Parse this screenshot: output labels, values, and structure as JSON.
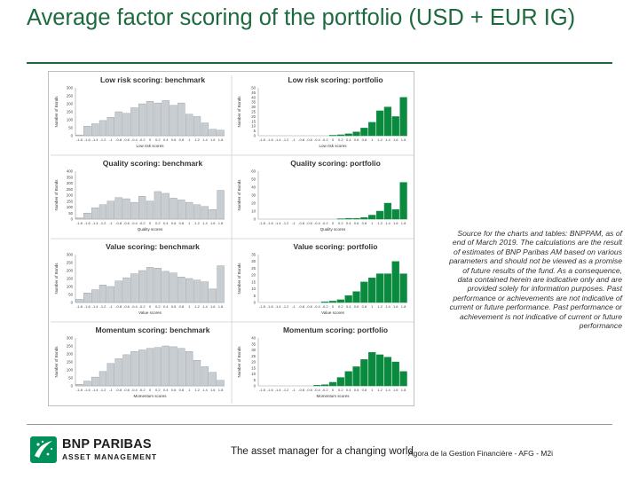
{
  "slide": {
    "title": "Average factor scoring of the portfolio (USD + EUR IG)",
    "source_note": "Source for the charts and tables: BNPPAM, as of end of March 2019. The calculations are the result of estimates of BNP Paribas AM based on various parameters and should not be viewed as a promise of future results of the fund. As a consequence, data contained herein are indicative only and are provided solely for information purposes. Past performance or achievements are not indicative of current or future performance. Past performance or achievement is not indicative of current or future performance",
    "footer_tagline": "The asset manager for a changing world",
    "footer_ref": "Agora de la Gestion Financière - AFG - M2i"
  },
  "logo": {
    "name": "BNP PARIBAS",
    "sub": "ASSET MANAGEMENT"
  },
  "colors": {
    "title": "#1e6a3f",
    "benchmark": "#c8cdd2",
    "benchmark_edge": "#8e959c",
    "portfolio": "#0a8a3e",
    "axis": "#9a9a9a"
  },
  "chart_data": [
    {
      "type": "bar",
      "title": "Low risk scoring: benchmark",
      "ylabel": "Number of Bonds",
      "xlabel": "Low risk scores",
      "ylim": [
        0,
        300
      ],
      "yticks": [
        0,
        50,
        100,
        150,
        200,
        250,
        300
      ],
      "categories": [
        "-1.8",
        "-1.6",
        "-1.4",
        "-1.2",
        "-1",
        "-0.8",
        "-0.6",
        "-0.4",
        "-0.2",
        "0",
        "0.2",
        "0.4",
        "0.6",
        "0.8",
        "1",
        "1.2",
        "1.4",
        "1.6",
        "1.8"
      ],
      "xtick_labels": [
        "-1.8",
        "-1.6",
        "-1.4",
        "-1.2",
        "-1",
        "-0.8",
        "-0.6",
        "-0.4",
        "-0.2",
        "0",
        "0.2",
        "0.4",
        "0.6",
        "0.8",
        "1",
        "1.2",
        "1.4",
        "1.6",
        "1.8"
      ],
      "series": [
        {
          "values": [
            5,
            60,
            75,
            95,
            115,
            150,
            140,
            175,
            200,
            215,
            205,
            220,
            190,
            205,
            135,
            120,
            80,
            40,
            35
          ]
        }
      ]
    },
    {
      "type": "bar",
      "title": "Low risk scoring: portfolio",
      "ylabel": "Number of Bonds",
      "xlabel": "Low risk scores",
      "ylim": [
        0,
        50
      ],
      "yticks": [
        0,
        5,
        10,
        15,
        20,
        25,
        30,
        35,
        40,
        45,
        50
      ],
      "categories": [
        "-1.8",
        "-1.6",
        "-1.4",
        "-1.2",
        "-1",
        "-0.8",
        "-0.6",
        "-0.4",
        "-0.2",
        "0",
        "0.2",
        "0.4",
        "0.6",
        "0.8",
        "1",
        "1.2",
        "1.4",
        "1.6",
        "1.8"
      ],
      "xtick_labels": [
        "-1.8",
        "-1.6",
        "-1.4",
        "-1.2",
        "-1",
        "-0.8",
        "-0.6",
        "-0.4",
        "-0.2",
        "0",
        "0.2",
        "0.4",
        "0.6",
        "0.8",
        "1",
        "1.2",
        "1.4",
        "1.6",
        "1.8"
      ],
      "series": [
        {
          "values": [
            0,
            0,
            0,
            0,
            0,
            0,
            0,
            0,
            0,
            0.5,
            1,
            2,
            4,
            8,
            14,
            26,
            30,
            20,
            40
          ]
        }
      ]
    },
    {
      "type": "bar",
      "title": "Quality scoring: benchmark",
      "ylabel": "Number of Bonds",
      "xlabel": "Quality scores",
      "ylim": [
        0,
        400
      ],
      "yticks": [
        0,
        50,
        100,
        150,
        200,
        250,
        300,
        350,
        400
      ],
      "categories": [
        "-1.8",
        "-1.6",
        "-1.4",
        "-1.2",
        "-1",
        "-0.8",
        "-0.6",
        "-0.4",
        "-0.2",
        "0",
        "0.2",
        "0.4",
        "0.6",
        "0.8",
        "1",
        "1.2",
        "1.4",
        "1.6",
        "1.8"
      ],
      "xtick_labels": [
        "-1.8",
        "-1.6",
        "-1.4",
        "-1.2",
        "-1",
        "-0.8",
        "-0.6",
        "-0.4",
        "-0.2",
        "0",
        "0.2",
        "0.4",
        "0.6",
        "0.8",
        "1",
        "1.2",
        "1.4",
        "1.6",
        "1.8"
      ],
      "series": [
        {
          "values": [
            10,
            50,
            95,
            120,
            150,
            180,
            170,
            140,
            190,
            150,
            230,
            215,
            175,
            160,
            140,
            120,
            105,
            80,
            240
          ]
        }
      ]
    },
    {
      "type": "bar",
      "title": "Quality scoring: portfolio",
      "ylabel": "Number of Bonds",
      "xlabel": "Quality scores",
      "ylim": [
        0,
        60
      ],
      "yticks": [
        0,
        10,
        20,
        30,
        40,
        50,
        60
      ],
      "categories": [
        "-1.8",
        "-1.6",
        "-1.4",
        "-1.2",
        "-1",
        "-0.8",
        "-0.6",
        "-0.4",
        "-0.2",
        "0",
        "0.2",
        "0.4",
        "0.6",
        "0.8",
        "1",
        "1.2",
        "1.4",
        "1.6",
        "1.8"
      ],
      "xtick_labels": [
        "-1.8",
        "-1.6",
        "-1.4",
        "-1.2",
        "-1",
        "-0.8",
        "-0.6",
        "-0.4",
        "-0.2",
        "0",
        "0.2",
        "0.4",
        "0.6",
        "0.8",
        "1",
        "1.2",
        "1.4",
        "1.6",
        "1.8"
      ],
      "series": [
        {
          "values": [
            0,
            0,
            0,
            0,
            0,
            0,
            0,
            0,
            0,
            0,
            0.5,
            1,
            1,
            2,
            5,
            10,
            20,
            12,
            46
          ]
        }
      ]
    },
    {
      "type": "bar",
      "title": "Value scoring: benchmark",
      "ylabel": "Number of Bonds",
      "xlabel": "Value scores",
      "ylim": [
        0,
        300
      ],
      "yticks": [
        0,
        50,
        100,
        150,
        200,
        250,
        300
      ],
      "categories": [
        "-1.8",
        "-1.6",
        "-1.4",
        "-1.2",
        "-1",
        "-0.8",
        "-0.6",
        "-0.4",
        "-0.2",
        "0",
        "0.2",
        "0.4",
        "0.6",
        "0.8",
        "1",
        "1.2",
        "1.4",
        "1.6",
        "1.8"
      ],
      "xtick_labels": [
        "-1.8",
        "-1.6",
        "-1.4",
        "-1.2",
        "-1",
        "-0.8",
        "-0.6",
        "-0.4",
        "-0.2",
        "0",
        "0.2",
        "0.4",
        "0.6",
        "0.8",
        "1",
        "1.2",
        "1.4",
        "1.6",
        "1.8"
      ],
      "series": [
        {
          "values": [
            20,
            60,
            80,
            110,
            100,
            135,
            155,
            180,
            200,
            220,
            215,
            195,
            185,
            160,
            150,
            140,
            130,
            85,
            230
          ]
        }
      ]
    },
    {
      "type": "bar",
      "title": "Value scoring: portfolio",
      "ylabel": "Number of Bonds",
      "xlabel": "Value scores",
      "ylim": [
        0,
        35
      ],
      "yticks": [
        0,
        5,
        10,
        15,
        20,
        25,
        30,
        35
      ],
      "categories": [
        "-1.8",
        "-1.6",
        "-1.4",
        "-1.2",
        "-1",
        "-0.8",
        "-0.6",
        "-0.4",
        "-0.2",
        "0",
        "0.2",
        "0.4",
        "0.6",
        "0.8",
        "1",
        "1.2",
        "1.4",
        "1.6",
        "1.8"
      ],
      "xtick_labels": [
        "-1.8",
        "-1.6",
        "-1.4",
        "-1.2",
        "-1",
        "-0.8",
        "-0.6",
        "-0.4",
        "-0.2",
        "0",
        "0.2",
        "0.4",
        "0.6",
        "0.8",
        "1",
        "1.2",
        "1.4",
        "1.6",
        "1.8"
      ],
      "series": [
        {
          "values": [
            0,
            0,
            0,
            0,
            0,
            0,
            0,
            0,
            0.5,
            1,
            2,
            5,
            8,
            15,
            18,
            21,
            21,
            30,
            21
          ]
        }
      ]
    },
    {
      "type": "bar",
      "title": "Momentum scoring: benchmark",
      "ylabel": "Number of Bonds",
      "xlabel": "Momentum scores",
      "ylim": [
        0,
        300
      ],
      "yticks": [
        0,
        50,
        100,
        150,
        200,
        250,
        300
      ],
      "categories": [
        "-1.8",
        "-1.6",
        "-1.4",
        "-1.2",
        "-1",
        "-0.8",
        "-0.6",
        "-0.4",
        "-0.2",
        "0",
        "0.2",
        "0.4",
        "0.6",
        "0.8",
        "1",
        "1.2",
        "1.4",
        "1.6",
        "1.8"
      ],
      "xtick_labels": [
        "-1.8",
        "-1.6",
        "-1.4",
        "-1.2",
        "-1",
        "-0.8",
        "-0.6",
        "-0.4",
        "-0.2",
        "0",
        "0.2",
        "0.4",
        "0.6",
        "0.8",
        "1",
        "1.2",
        "1.4",
        "1.6",
        "1.8"
      ],
      "series": [
        {
          "values": [
            10,
            30,
            55,
            90,
            140,
            170,
            195,
            215,
            225,
            235,
            240,
            250,
            245,
            235,
            215,
            160,
            120,
            85,
            35
          ]
        }
      ]
    },
    {
      "type": "bar",
      "title": "Momentum scoring: portfolio",
      "ylabel": "Number of Bonds",
      "xlabel": "Momentum scores",
      "ylim": [
        0,
        40
      ],
      "yticks": [
        0,
        5,
        10,
        15,
        20,
        25,
        30,
        35,
        40
      ],
      "categories": [
        "-1.8",
        "-1.6",
        "-1.4",
        "-1.2",
        "-1",
        "-0.8",
        "-0.6",
        "-0.4",
        "-0.2",
        "0",
        "0.2",
        "0.4",
        "0.6",
        "0.8",
        "1",
        "1.2",
        "1.4",
        "1.6",
        "1.8"
      ],
      "xtick_labels": [
        "-1.8",
        "-1.6",
        "-1.4",
        "-1.2",
        "-1",
        "-0.8",
        "-0.6",
        "-0.4",
        "-0.2",
        "0",
        "0.2",
        "0.4",
        "0.6",
        "0.8",
        "1",
        "1.2",
        "1.4",
        "1.6",
        "1.8"
      ],
      "series": [
        {
          "values": [
            0,
            0,
            0,
            0,
            0,
            0,
            0,
            0.5,
            1,
            3,
            7,
            12,
            16,
            22,
            28,
            26,
            24,
            20,
            12
          ]
        }
      ]
    }
  ]
}
